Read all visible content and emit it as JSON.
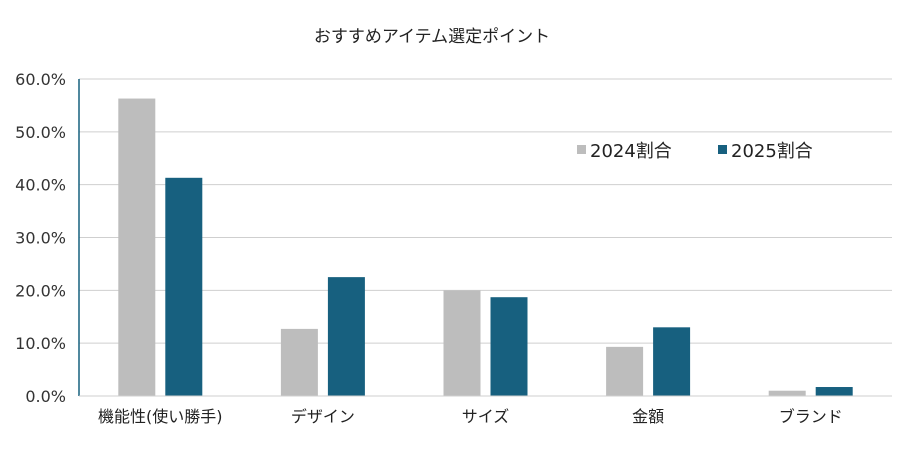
{
  "chart_data": {
    "type": "bar",
    "title": "おすすめアイテム選定ポイント",
    "categories": [
      "機能性(使い勝手)",
      "デザイン",
      "サイズ",
      "金額",
      "ブランド"
    ],
    "series": [
      {
        "name": "2024割合",
        "values": [
          56.3,
          12.7,
          20.0,
          9.3,
          1.0
        ]
      },
      {
        "name": "2025割合",
        "values": [
          41.3,
          22.5,
          18.7,
          13.0,
          1.7
        ]
      }
    ],
    "ylim": [
      0,
      60
    ],
    "yticks": [
      "0.0%",
      "10.0%",
      "20.0%",
      "30.0%",
      "40.0%",
      "50.0%",
      "60.0%"
    ],
    "xlabel": "",
    "ylabel": "",
    "grid": true,
    "legend_position": "top-right",
    "colors": {
      "2024割合": "#bdbdbd",
      "2025割合": "#17607f",
      "grid": "#cfcfcf",
      "axis": "#17607f"
    }
  }
}
